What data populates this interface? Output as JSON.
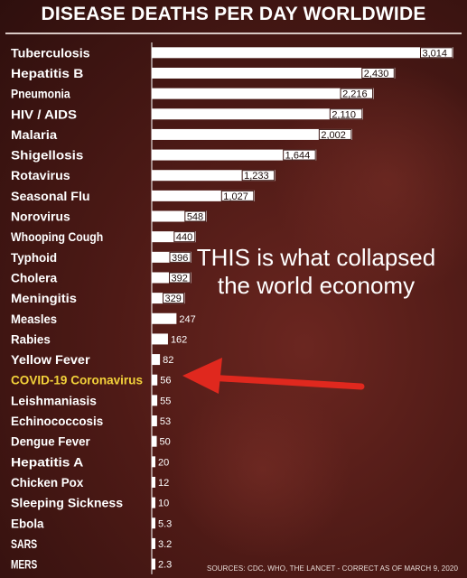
{
  "title": "DISEASE DEATHS PER DAY WORLDWIDE",
  "annotation": "THIS is what collapsed the world economy",
  "source": "SOURCES: CDC, WHO, THE LANCET - CORRECT AS OF MARCH 9, 2020",
  "colors": {
    "background": "#4e1a16",
    "bar": "#ffffff",
    "label": "#ffffff",
    "highlight": "#f2d13a",
    "arrow": "#e0281e"
  },
  "chart_data": {
    "type": "bar",
    "orientation": "horizontal",
    "title": "DISEASE DEATHS PER DAY WORLDWIDE",
    "xlabel": "",
    "ylabel": "",
    "grid": false,
    "highlight_category": "COVID-19 Coronavirus",
    "categories": [
      "Tuberculosis",
      "Hepatitis B",
      "Pneumonia",
      "HIV / AIDS",
      "Malaria",
      "Shigellosis",
      "Rotavirus",
      "Seasonal Flu",
      "Norovirus",
      "Whooping Cough",
      "Typhoid",
      "Cholera",
      "Meningitis",
      "Measles",
      "Rabies",
      "Yellow Fever",
      "COVID-19 Coronavirus",
      "Leishmaniasis",
      "Echinococcosis",
      "Dengue Fever",
      "Hepatitis A",
      "Chicken Pox",
      "Sleeping Sickness",
      "Ebola",
      "SARS",
      "MERS"
    ],
    "values": [
      3014,
      2430,
      2216,
      2110,
      2002,
      1644,
      1233,
      1027,
      548,
      440,
      396,
      392,
      329,
      247,
      162,
      82,
      56,
      55,
      53,
      50,
      20,
      12,
      10,
      5.3,
      3.2,
      2.3
    ],
    "value_labels": [
      "3,014",
      "2,430",
      "2,216",
      "2,110",
      "2,002",
      "1,644",
      "1,233",
      "1,027",
      "548",
      "440",
      "396",
      "392",
      "329",
      "247",
      "162",
      "82",
      "56",
      "55",
      "53",
      "50",
      "20",
      "12",
      "10",
      "5.3",
      "3.2",
      "2.3"
    ],
    "xlim": [
      0,
      3014
    ]
  }
}
